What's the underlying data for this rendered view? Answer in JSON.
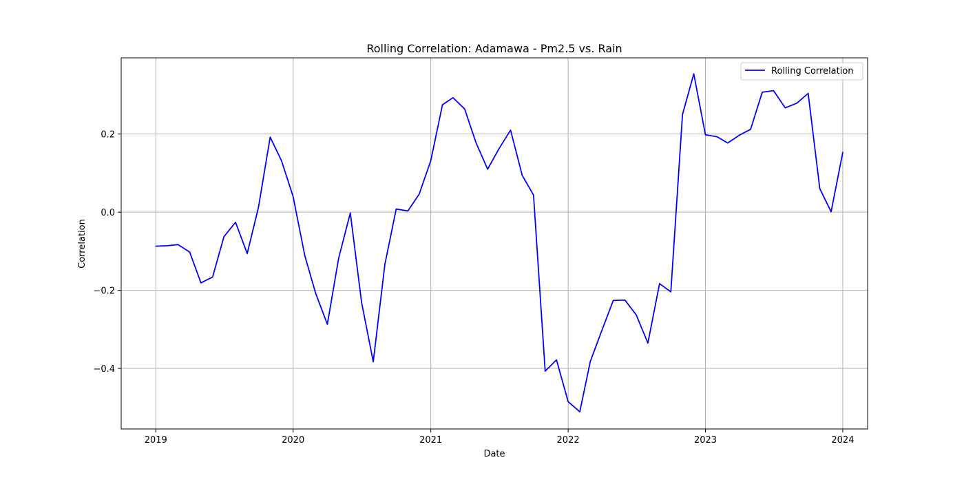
{
  "chart_data": {
    "type": "line",
    "title": "Rolling Correlation: Adamawa - Pm2.5 vs. Rain",
    "xlabel": "Date",
    "ylabel": "Correlation",
    "xlim": [
      "2018-10-01",
      "2024-03-07"
    ],
    "ylim": [
      -0.555,
      0.395
    ],
    "x_ticks": [
      "2019-01-01",
      "2020-01-01",
      "2021-01-01",
      "2022-01-01",
      "2023-01-01",
      "2024-01-01"
    ],
    "x_tick_labels": [
      "2019",
      "2020",
      "2021",
      "2022",
      "2023",
      "2024"
    ],
    "y_ticks": [
      -0.4,
      -0.2,
      0.0,
      0.2
    ],
    "y_tick_labels": [
      "−0.4",
      "−0.2",
      "0.0",
      "0.2"
    ],
    "grid": true,
    "legend_position": "top-right",
    "colors": {
      "line": "#0000ff",
      "grid": "#b0b0b0",
      "axes": "#000000"
    },
    "x": [
      "2019-01-01",
      "2019-02-01",
      "2019-03-01",
      "2019-04-01",
      "2019-05-01",
      "2019-06-01",
      "2019-07-01",
      "2019-08-01",
      "2019-09-01",
      "2019-10-01",
      "2019-11-01",
      "2019-12-01",
      "2020-01-01",
      "2020-02-01",
      "2020-03-01",
      "2020-04-01",
      "2020-05-01",
      "2020-06-01",
      "2020-07-01",
      "2020-08-01",
      "2020-09-01",
      "2020-10-01",
      "2020-11-01",
      "2020-12-01",
      "2021-01-01",
      "2021-02-01",
      "2021-03-01",
      "2021-04-01",
      "2021-05-01",
      "2021-06-01",
      "2021-07-01",
      "2021-08-01",
      "2021-09-01",
      "2021-10-01",
      "2021-11-01",
      "2021-12-01",
      "2022-01-01",
      "2022-02-01",
      "2022-03-01",
      "2022-04-01",
      "2022-05-01",
      "2022-06-01",
      "2022-07-01",
      "2022-08-01",
      "2022-09-01",
      "2022-10-01",
      "2022-11-01",
      "2022-12-01",
      "2023-01-01",
      "2023-02-01",
      "2023-03-01",
      "2023-04-01",
      "2023-05-01",
      "2023-06-01",
      "2023-07-01",
      "2023-08-01",
      "2023-09-01",
      "2023-10-01",
      "2023-11-01",
      "2023-12-01",
      "2024-01-01"
    ],
    "series": [
      {
        "name": "Rolling Correlation",
        "values": [
          -0.087,
          -0.086,
          -0.083,
          -0.102,
          -0.181,
          -0.166,
          -0.063,
          -0.026,
          -0.106,
          0.013,
          0.192,
          0.132,
          0.04,
          -0.111,
          -0.208,
          -0.287,
          -0.118,
          -0.002,
          -0.231,
          -0.383,
          -0.133,
          0.008,
          0.003,
          0.046,
          0.132,
          0.275,
          0.293,
          0.264,
          0.178,
          0.11,
          0.162,
          0.21,
          0.094,
          0.044,
          -0.407,
          -0.378,
          -0.485,
          -0.511,
          -0.382,
          -0.302,
          -0.226,
          -0.225,
          -0.263,
          -0.335,
          -0.183,
          -0.204,
          0.25,
          0.354,
          0.198,
          0.193,
          0.177,
          0.197,
          0.212,
          0.307,
          0.311,
          0.267,
          0.279,
          0.304,
          0.06,
          0.001,
          0.153
        ]
      }
    ]
  }
}
